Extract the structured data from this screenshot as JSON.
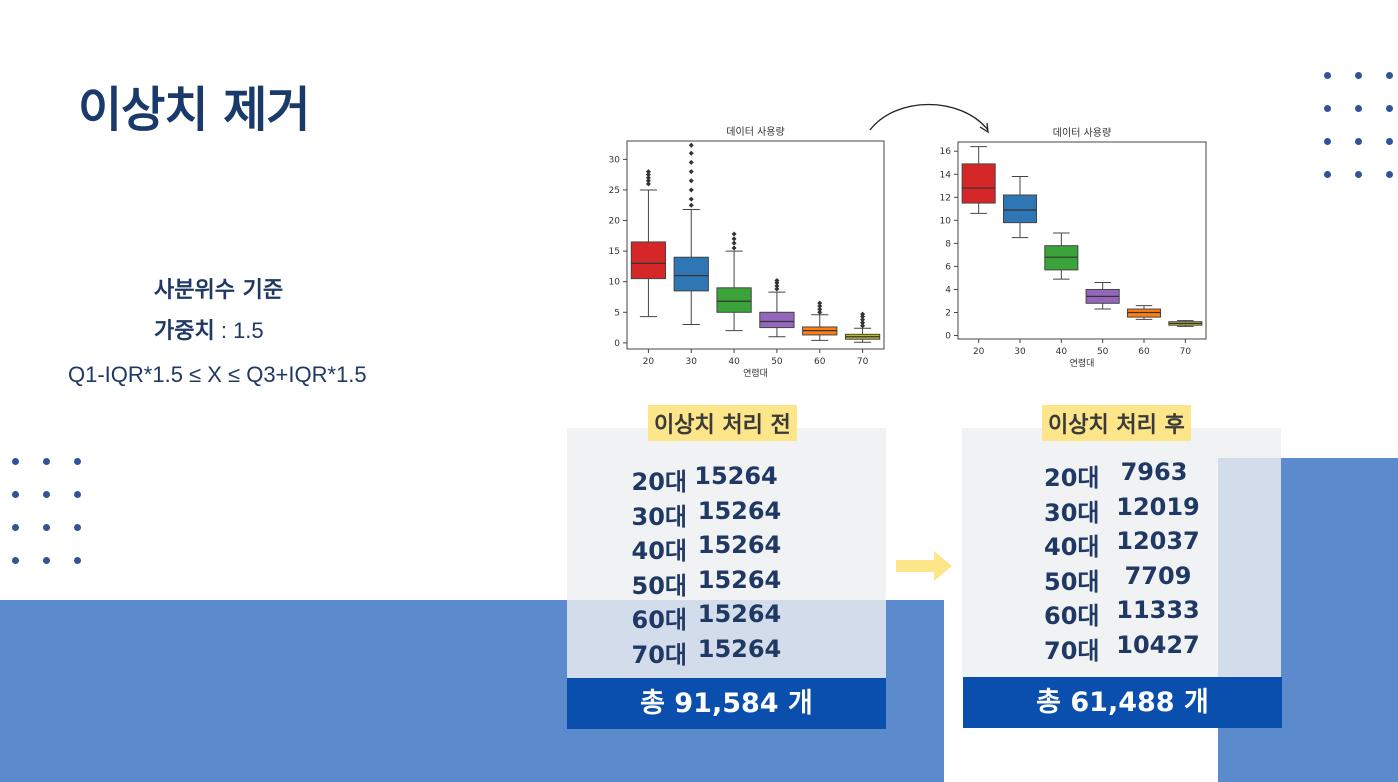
{
  "title": "이상치 제거",
  "criteria": {
    "line1": "사분위수 기준",
    "weight_label": "가중치",
    "weight_value": " : 1.5",
    "formula": "Q1-IQR*1.5 ≤ X ≤ Q3+IQR*1.5"
  },
  "chart_data": [
    {
      "type": "box",
      "title": "데이터 사용량",
      "xlabel": "연령대",
      "ylabel": "",
      "categories": [
        "20",
        "30",
        "40",
        "50",
        "60",
        "70"
      ],
      "ylim": [
        -1,
        33
      ],
      "yticks": [
        0,
        5,
        10,
        15,
        20,
        25,
        30
      ],
      "boxes": [
        {
          "q1": 10.5,
          "median": 13,
          "q3": 16.5,
          "whisker_low": 4.3,
          "whisker_high": 25,
          "outliers": [
            26,
            26.5,
            27,
            27.5,
            28
          ],
          "color": "#d62728"
        },
        {
          "q1": 8.5,
          "median": 11,
          "q3": 14,
          "whisker_low": 3,
          "whisker_high": 21.8,
          "outliers": [
            22.5,
            23.5,
            25,
            26.5,
            28,
            29.5,
            31,
            32.3
          ],
          "color": "#2f77b4"
        },
        {
          "q1": 5,
          "median": 6.8,
          "q3": 9,
          "whisker_low": 2,
          "whisker_high": 15,
          "outliers": [
            15.5,
            16.3,
            17,
            17.8
          ],
          "color": "#3aa33a"
        },
        {
          "q1": 2.5,
          "median": 3.5,
          "q3": 5,
          "whisker_low": 1,
          "whisker_high": 8.3,
          "outliers": [
            8.8,
            9.3,
            9.8,
            10.2
          ],
          "color": "#9467bd"
        },
        {
          "q1": 1.3,
          "median": 2,
          "q3": 2.6,
          "whisker_low": 0.4,
          "whisker_high": 4.6,
          "outliers": [
            5,
            5.5,
            6,
            6.5
          ],
          "color": "#ff7f0e"
        },
        {
          "q1": 0.6,
          "median": 1,
          "q3": 1.4,
          "whisker_low": 0.1,
          "whisker_high": 2.4,
          "outliers": [
            2.8,
            3.3,
            3.8,
            4.3,
            4.7
          ],
          "color": "#bcbd22"
        }
      ]
    },
    {
      "type": "box",
      "title": "데이터 사용량",
      "xlabel": "연령대",
      "ylabel": "",
      "categories": [
        "20",
        "30",
        "40",
        "50",
        "60",
        "70"
      ],
      "ylim": [
        -0.3,
        16.8
      ],
      "yticks": [
        0,
        2,
        4,
        6,
        8,
        10,
        12,
        14,
        16
      ],
      "boxes": [
        {
          "q1": 11.5,
          "median": 12.8,
          "q3": 14.9,
          "whisker_low": 10.6,
          "whisker_high": 16.4,
          "outliers": [],
          "color": "#d62728"
        },
        {
          "q1": 9.8,
          "median": 10.9,
          "q3": 12.2,
          "whisker_low": 8.5,
          "whisker_high": 13.8,
          "outliers": [],
          "color": "#2f77b4"
        },
        {
          "q1": 5.7,
          "median": 6.8,
          "q3": 7.8,
          "whisker_low": 4.9,
          "whisker_high": 8.9,
          "outliers": [],
          "color": "#3aa33a"
        },
        {
          "q1": 2.8,
          "median": 3.4,
          "q3": 4.0,
          "whisker_low": 2.3,
          "whisker_high": 4.6,
          "outliers": [],
          "color": "#9467bd"
        },
        {
          "q1": 1.6,
          "median": 2.0,
          "q3": 2.3,
          "whisker_low": 1.4,
          "whisker_high": 2.6,
          "outliers": [],
          "color": "#ff7f0e"
        },
        {
          "q1": 0.9,
          "median": 1.05,
          "q3": 1.2,
          "whisker_low": 0.8,
          "whisker_high": 1.3,
          "outliers": [],
          "color": "#bcbd22"
        }
      ]
    }
  ],
  "before": {
    "header": "이상치 처리 전",
    "rows": [
      {
        "age": "20대",
        "count": "15264"
      },
      {
        "age": "30대",
        "count": "15264"
      },
      {
        "age": "40대",
        "count": "15264"
      },
      {
        "age": "50대",
        "count": "15264"
      },
      {
        "age": "60대",
        "count": "15264"
      },
      {
        "age": "70대",
        "count": "15264"
      }
    ],
    "total": "총 91,584 개"
  },
  "after": {
    "header": "이상치 처리 후",
    "rows": [
      {
        "age": "20대",
        "count": "7963"
      },
      {
        "age": "30대",
        "count": "12019"
      },
      {
        "age": "40대",
        "count": "12037"
      },
      {
        "age": "50대",
        "count": "7709"
      },
      {
        "age": "60대",
        "count": "11333"
      },
      {
        "age": "70대",
        "count": "10427"
      }
    ],
    "total": "총 61,488 개"
  },
  "colors": {
    "accent": "#0a4fad",
    "band": "#5b8bcc",
    "highlight": "#fde58a",
    "dots": "#2f5597",
    "arrow": "#fde58a"
  },
  "icons": {
    "arrow": "right-arrow-icon",
    "curve": "curved-arrow-icon",
    "dots": "dot-grid"
  }
}
